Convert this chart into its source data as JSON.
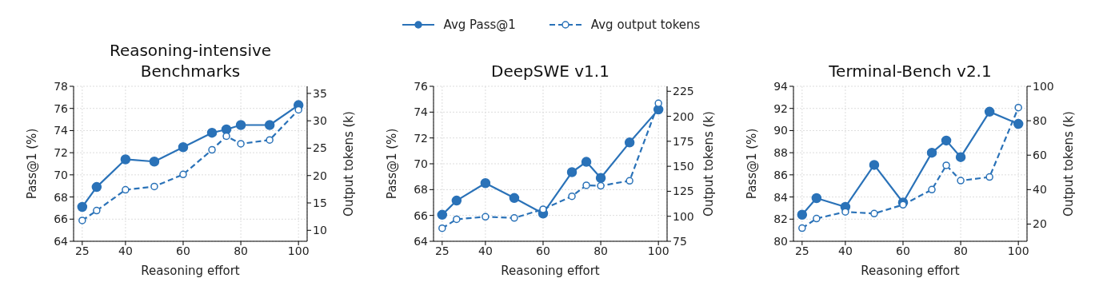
{
  "chart_data": [
    {
      "type": "line",
      "title": "Reasoning-intensive Benchmarks",
      "xlabel": "Reasoning effort",
      "ylabel": "Pass@1 (%)",
      "y2label": "Output tokens (k)",
      "legend": "top",
      "grid": true,
      "marker": "circle",
      "x": [
        25,
        30,
        40,
        50,
        60,
        70,
        75,
        80,
        90,
        100
      ],
      "xlim": [
        22,
        103
      ],
      "xticks": [
        25,
        40,
        60,
        80,
        100
      ],
      "ylim": [
        64,
        78
      ],
      "yticks": [
        64,
        66,
        68,
        70,
        72,
        74,
        76,
        78
      ],
      "y2lim": [
        8,
        36.3
      ],
      "y2ticks": [
        10,
        15,
        20,
        25,
        30,
        35
      ],
      "series": [
        {
          "name": "Avg Pass@1",
          "color": "#2a72b8",
          "line_style": "solid",
          "values": [
            67.1,
            68.9,
            71.4,
            71.2,
            72.5,
            73.8,
            74.1,
            74.5,
            74.5,
            76.3
          ]
        },
        {
          "name": "Avg output tokens",
          "color": "#2a72b8",
          "line_style": "dashed",
          "axis": "y2",
          "values": [
            11.8,
            13.6,
            17.4,
            18.0,
            20.2,
            24.7,
            27.2,
            25.8,
            26.5,
            32.0
          ]
        }
      ]
    },
    {
      "type": "line",
      "title": "DeepSWE v1.1",
      "xlabel": "Reasoning effort",
      "ylabel": "Pass@1 (%)",
      "y2label": "Output tokens (k)",
      "grid": true,
      "marker": "circle",
      "x": [
        25,
        30,
        40,
        50,
        60,
        70,
        75,
        80,
        90,
        100
      ],
      "xlim": [
        22,
        103
      ],
      "xticks": [
        25,
        40,
        60,
        80,
        100
      ],
      "ylim": [
        64,
        76
      ],
      "yticks": [
        64,
        66,
        68,
        70,
        72,
        74,
        76
      ],
      "y2lim": [
        75,
        230
      ],
      "y2ticks": [
        75,
        100,
        125,
        150,
        175,
        200,
        225
      ],
      "series": [
        {
          "color": "#2a72b8",
          "line_style": "solid",
          "values": [
            66.05,
            67.15,
            68.5,
            67.35,
            66.15,
            69.35,
            70.15,
            68.9,
            71.65,
            74.2
          ]
        },
        {
          "color": "#2a72b8",
          "line_style": "dashed",
          "axis": "y2",
          "values": [
            88,
            97,
            99.5,
            98.3,
            107,
            120,
            131,
            130.5,
            135.5,
            213
          ]
        }
      ]
    },
    {
      "type": "line",
      "title": "Terminal-Bench v2.1",
      "xlabel": "Reasoning effort",
      "ylabel": "Pass@1 (%)",
      "y2label": "Output tokens (k)",
      "grid": true,
      "marker": "circle",
      "x": [
        25,
        30,
        40,
        50,
        60,
        70,
        75,
        80,
        90,
        100
      ],
      "xlim": [
        22,
        103
      ],
      "xticks": [
        25,
        40,
        60,
        80,
        100
      ],
      "ylim": [
        80,
        94
      ],
      "yticks": [
        80,
        82,
        84,
        86,
        88,
        90,
        92,
        94
      ],
      "y2lim": [
        10,
        100
      ],
      "y2ticks": [
        20,
        40,
        60,
        80,
        100
      ],
      "series": [
        {
          "color": "#2a72b8",
          "line_style": "solid",
          "values": [
            82.4,
            83.9,
            83.1,
            86.9,
            83.5,
            88.0,
            89.1,
            87.6,
            91.7,
            90.6
          ]
        },
        {
          "color": "#2a72b8",
          "line_style": "dashed",
          "axis": "y2",
          "values": [
            17.6,
            23.2,
            27.1,
            26.1,
            31.2,
            40,
            54.1,
            45.2,
            47.3,
            87.6
          ]
        }
      ]
    }
  ]
}
